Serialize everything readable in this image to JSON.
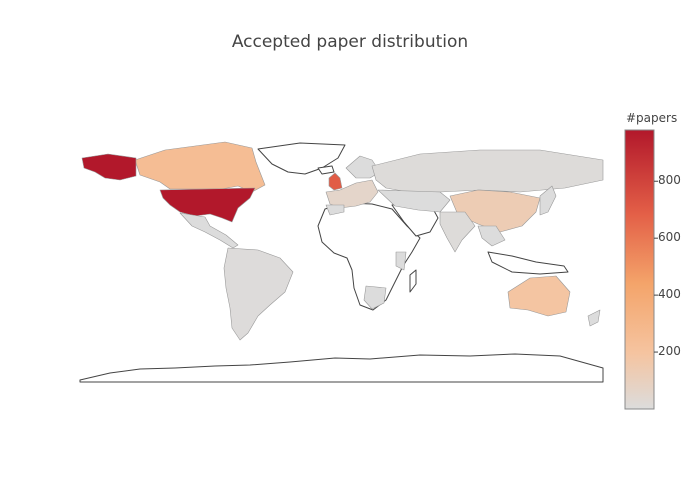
{
  "title": "Accepted paper distribution",
  "colorbar": {
    "title": "#papers",
    "min": 0,
    "max": 980,
    "ticks": [
      {
        "value": 200,
        "label": "200"
      },
      {
        "value": 400,
        "label": "400"
      },
      {
        "value": 600,
        "label": "600"
      },
      {
        "value": 800,
        "label": "800"
      }
    ],
    "colorscale": [
      "#dcdcdc",
      "#f5c4a0",
      "#f4a46a",
      "#e35f47",
      "#b2182b"
    ]
  },
  "chart_data": {
    "type": "choropleth",
    "title": "Accepted paper distribution",
    "value_label": "#papers",
    "range": [
      0,
      980
    ],
    "countries": [
      {
        "name": "United States",
        "value": 980
      },
      {
        "name": "United Kingdom",
        "value": 700
      },
      {
        "name": "Canada",
        "value": 250
      },
      {
        "name": "China",
        "value": 130
      },
      {
        "name": "Australia",
        "value": 190
      },
      {
        "name": "Netherlands",
        "value": 120
      },
      {
        "name": "Germany",
        "value": 60
      },
      {
        "name": "France",
        "value": 60
      },
      {
        "name": "Russia",
        "value": 10
      },
      {
        "name": "India",
        "value": 10
      },
      {
        "name": "Brazil",
        "value": 5
      }
    ]
  }
}
